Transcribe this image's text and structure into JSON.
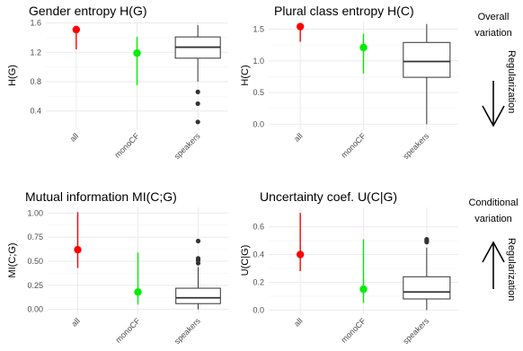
{
  "chart_data": [
    {
      "type": "pointrange+boxplot",
      "title": "Gender entropy H(G)",
      "ylabel": "H(G)",
      "categories": [
        "all",
        "monoCF",
        "speakers"
      ],
      "ylim": [
        0.15,
        1.62
      ],
      "yticks": [
        0.4,
        0.8,
        1.2,
        1.6
      ],
      "yticklabels": [
        "0.4",
        "0.8",
        "1.2",
        "1.6"
      ],
      "grid": true,
      "pointranges": [
        {
          "category": "all",
          "color": "#ff0000",
          "point": 1.51,
          "low": 1.24,
          "high": 1.56
        },
        {
          "category": "monoCF",
          "color": "#00ee00",
          "point": 1.19,
          "low": 0.75,
          "high": 1.41
        }
      ],
      "boxplot": {
        "category": "speakers",
        "whisker_low": 0.8,
        "q1": 1.12,
        "median": 1.27,
        "q3": 1.41,
        "whisker_high": 1.57,
        "outliers": [
          0.66,
          0.5,
          0.25
        ]
      }
    },
    {
      "type": "pointrange+boxplot",
      "title": "Plural class entropy H(C)",
      "ylabel": "H(C)",
      "categories": [
        "all",
        "monoCF",
        "speakers"
      ],
      "ylim": [
        -0.08,
        1.62
      ],
      "yticks": [
        0.0,
        0.5,
        1.0,
        1.5
      ],
      "yticklabels": [
        "0.0",
        "0.5",
        "1.0",
        "1.5"
      ],
      "grid": true,
      "pointranges": [
        {
          "category": "all",
          "color": "#ff0000",
          "point": 1.54,
          "low": 1.3,
          "high": 1.58
        },
        {
          "category": "monoCF",
          "color": "#00ee00",
          "point": 1.21,
          "low": 0.8,
          "high": 1.43
        }
      ],
      "boxplot": {
        "category": "speakers",
        "whisker_low": 0.0,
        "q1": 0.74,
        "median": 0.99,
        "q3": 1.29,
        "whisker_high": 1.58,
        "outliers": []
      }
    },
    {
      "type": "pointrange+boxplot",
      "title": "Mutual information MI(C;G)",
      "ylabel": "MI(C;G)",
      "categories": [
        "all",
        "monoCF",
        "speakers"
      ],
      "ylim": [
        -0.05,
        1.06
      ],
      "yticks": [
        0.0,
        0.25,
        0.5,
        0.75,
        1.0
      ],
      "yticklabels": [
        "0.00",
        "0.25",
        "0.50",
        "0.75",
        "1.00"
      ],
      "grid": true,
      "pointranges": [
        {
          "category": "all",
          "color": "#ff0000",
          "point": 0.62,
          "low": 0.43,
          "high": 1.01
        },
        {
          "category": "monoCF",
          "color": "#00ee00",
          "point": 0.18,
          "low": 0.05,
          "high": 0.59
        }
      ],
      "boxplot": {
        "category": "speakers",
        "whisker_low": 0.0,
        "q1": 0.06,
        "median": 0.12,
        "q3": 0.22,
        "whisker_high": 0.44,
        "outliers": [
          0.48,
          0.51,
          0.53,
          0.71
        ]
      }
    },
    {
      "type": "pointrange+boxplot",
      "title": "Uncertainty coef. U(C|G)",
      "ylabel": "U(C|G)",
      "categories": [
        "all",
        "monoCF",
        "speakers"
      ],
      "ylim": [
        -0.03,
        0.74
      ],
      "yticks": [
        0.0,
        0.2,
        0.4,
        0.6
      ],
      "yticklabels": [
        "0.0",
        "0.2",
        "0.4",
        "0.6"
      ],
      "grid": true,
      "pointranges": [
        {
          "category": "all",
          "color": "#ff0000",
          "point": 0.4,
          "low": 0.28,
          "high": 0.7
        },
        {
          "category": "monoCF",
          "color": "#00ee00",
          "point": 0.15,
          "low": 0.05,
          "high": 0.51
        }
      ],
      "boxplot": {
        "category": "speakers",
        "whisker_low": 0.0,
        "q1": 0.08,
        "median": 0.13,
        "q3": 0.24,
        "whisker_high": 0.45,
        "outliers": [
          0.49,
          0.5,
          0.51
        ]
      }
    }
  ],
  "annotations": {
    "top": {
      "heading": [
        "Overall",
        "variation"
      ],
      "arrow": "down",
      "label": "Regularization"
    },
    "bottom": {
      "heading": [
        "Conditional",
        "variation"
      ],
      "arrow": "up",
      "label": "Regularization"
    }
  }
}
